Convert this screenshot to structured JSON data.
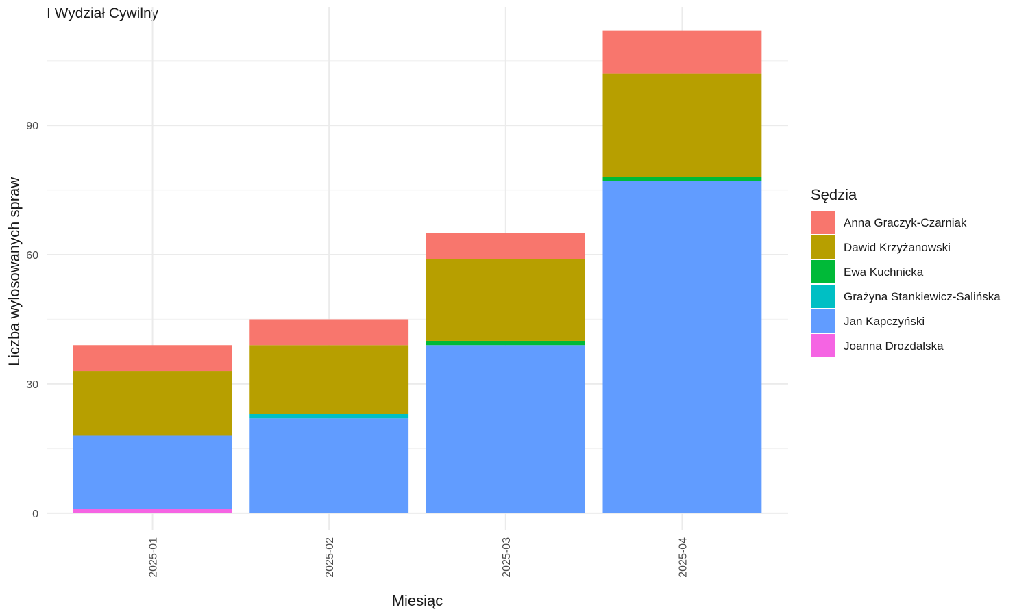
{
  "chart_data": {
    "type": "bar",
    "stacked": true,
    "title": "I Wydział Cywilny",
    "xlabel": "Miesiąc",
    "ylabel": "Liczba wylosowanych spraw",
    "categories": [
      "2025-01",
      "2025-02",
      "2025-03",
      "2025-04"
    ],
    "ylim": [
      -4,
      117.5
    ],
    "yticks": [
      0,
      30,
      60,
      90
    ],
    "grid": true,
    "legend": {
      "title": "Sędzia",
      "position": "right"
    },
    "series": [
      {
        "name": "Joanna Drozdalska",
        "color": "#F564E3",
        "values": [
          1,
          0,
          0,
          0
        ]
      },
      {
        "name": "Jan Kapczyński",
        "color": "#619CFF",
        "values": [
          17,
          22,
          39,
          77
        ]
      },
      {
        "name": "Grażyna Stankiewicz-Salińska",
        "color": "#00BFC4",
        "values": [
          0,
          1,
          0,
          0
        ]
      },
      {
        "name": "Ewa Kuchnicka",
        "color": "#00BA38",
        "values": [
          0,
          0,
          1,
          1
        ]
      },
      {
        "name": "Dawid Krzyżanowski",
        "color": "#B79F00",
        "values": [
          15,
          16,
          19,
          24
        ]
      },
      {
        "name": "Anna Graczyk-Czarniak",
        "color": "#F8766D",
        "values": [
          6,
          6,
          6,
          10
        ]
      }
    ],
    "legend_order": [
      "Anna Graczyk-Czarniak",
      "Dawid Krzyżanowski",
      "Ewa Kuchnicka",
      "Grażyna Stankiewicz-Salińska",
      "Jan Kapczyński",
      "Joanna Drozdalska"
    ]
  }
}
